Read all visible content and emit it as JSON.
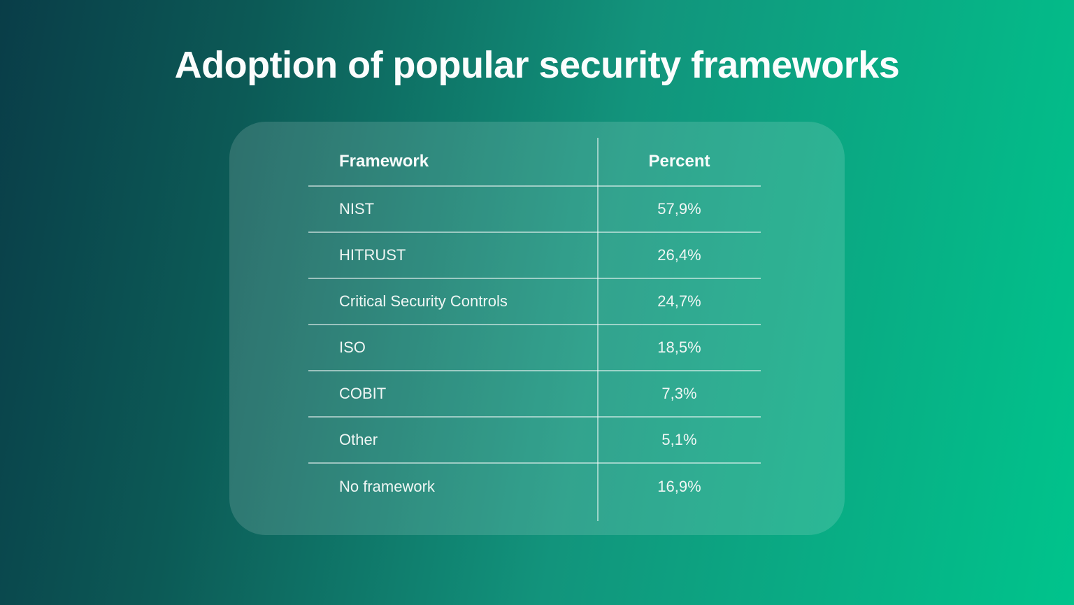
{
  "title": "Adoption of popular security frameworks",
  "table": {
    "columns": [
      "Framework",
      "Percent"
    ],
    "rows": [
      {
        "framework": "NIST",
        "percent": "57,9%"
      },
      {
        "framework": "HITRUST",
        "percent": "26,4%"
      },
      {
        "framework": "Critical Security Controls",
        "percent": "24,7%"
      },
      {
        "framework": "ISO",
        "percent": "18,5%"
      },
      {
        "framework": "COBIT",
        "percent": "7,3%"
      },
      {
        "framework": "Other",
        "percent": "5,1%"
      },
      {
        "framework": "No framework",
        "percent": "16,9%"
      }
    ]
  },
  "chart_data": {
    "type": "table",
    "title": "Adoption of popular security frameworks",
    "columns": [
      "Framework",
      "Percent"
    ],
    "categories": [
      "NIST",
      "HITRUST",
      "Critical Security Controls",
      "ISO",
      "COBIT",
      "Other",
      "No framework"
    ],
    "values": [
      57.9,
      26.4,
      24.7,
      18.5,
      7.3,
      5.1,
      16.9
    ],
    "value_unit": "%",
    "value_format": "comma-decimal"
  },
  "colors": {
    "bg_gradient_start": "#093d48",
    "bg_gradient_end": "#00c48c",
    "card_overlay": "rgba(255,255,255,0.14)",
    "divider_line": "rgba(255,255,255,0.52)",
    "text": "#eff6f4"
  }
}
